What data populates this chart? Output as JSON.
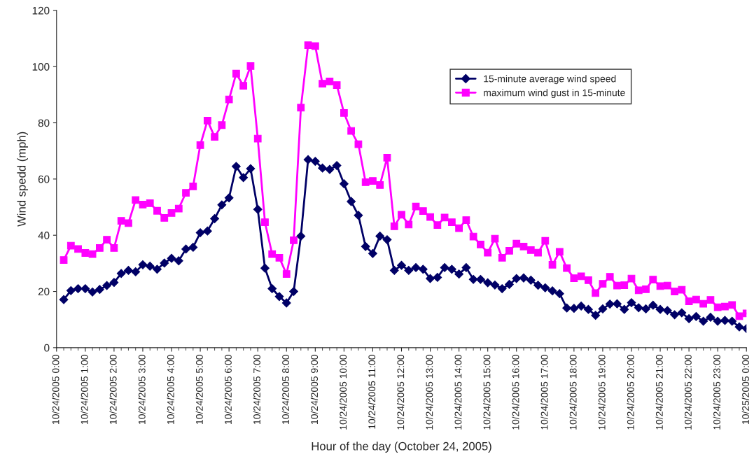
{
  "chart_data": {
    "type": "line",
    "xlabel": "Hour of the day (October 24, 2005)",
    "ylabel": "Wind spedd (mph)",
    "x": [
      "2005-10-24T00:15",
      "2005-10-24T00:30",
      "2005-10-24T00:45",
      "2005-10-24T01:00",
      "2005-10-24T01:15",
      "2005-10-24T01:30",
      "2005-10-24T01:45",
      "2005-10-24T02:00",
      "2005-10-24T02:15",
      "2005-10-24T02:30",
      "2005-10-24T02:45",
      "2005-10-24T03:00",
      "2005-10-24T03:15",
      "2005-10-24T03:30",
      "2005-10-24T03:45",
      "2005-10-24T04:00",
      "2005-10-24T04:15",
      "2005-10-24T04:30",
      "2005-10-24T04:45",
      "2005-10-24T05:00",
      "2005-10-24T05:15",
      "2005-10-24T05:30",
      "2005-10-24T05:45",
      "2005-10-24T06:00",
      "2005-10-24T06:15",
      "2005-10-24T06:30",
      "2005-10-24T06:45",
      "2005-10-24T07:00",
      "2005-10-24T07:15",
      "2005-10-24T07:30",
      "2005-10-24T07:45",
      "2005-10-24T08:00",
      "2005-10-24T08:15",
      "2005-10-24T08:30",
      "2005-10-24T08:45",
      "2005-10-24T09:00",
      "2005-10-24T09:15",
      "2005-10-24T09:30",
      "2005-10-24T09:45",
      "2005-10-24T10:00",
      "2005-10-24T10:15",
      "2005-10-24T10:30",
      "2005-10-24T10:45",
      "2005-10-24T11:00",
      "2005-10-24T11:15",
      "2005-10-24T11:30",
      "2005-10-24T11:45",
      "2005-10-24T12:00",
      "2005-10-24T12:15",
      "2005-10-24T12:30",
      "2005-10-24T12:45",
      "2005-10-24T13:00",
      "2005-10-24T13:15",
      "2005-10-24T13:30",
      "2005-10-24T13:45",
      "2005-10-24T14:00",
      "2005-10-24T14:15",
      "2005-10-24T14:30",
      "2005-10-24T14:45",
      "2005-10-24T15:00",
      "2005-10-24T15:15",
      "2005-10-24T15:30",
      "2005-10-24T15:45",
      "2005-10-24T16:00",
      "2005-10-24T16:15",
      "2005-10-24T16:30",
      "2005-10-24T16:45",
      "2005-10-24T17:00",
      "2005-10-24T17:15",
      "2005-10-24T17:30",
      "2005-10-24T17:45",
      "2005-10-24T18:00",
      "2005-10-24T18:15",
      "2005-10-24T18:30",
      "2005-10-24T18:45",
      "2005-10-24T19:00",
      "2005-10-24T19:15",
      "2005-10-24T19:30",
      "2005-10-24T19:45",
      "2005-10-24T20:00",
      "2005-10-24T20:15",
      "2005-10-24T20:30",
      "2005-10-24T20:45",
      "2005-10-24T21:00",
      "2005-10-24T21:15",
      "2005-10-24T21:30",
      "2005-10-24T21:45",
      "2005-10-24T22:00",
      "2005-10-24T22:15",
      "2005-10-24T22:30",
      "2005-10-24T22:45",
      "2005-10-24T23:00",
      "2005-10-24T23:15",
      "2005-10-24T23:30",
      "2005-10-24T23:45",
      "2005-10-25T00:00"
    ],
    "series": [
      {
        "name": "15-minute average wind speed",
        "color": "#000066",
        "marker": "diamond",
        "values": [
          17.1,
          20.3,
          21.0,
          21.0,
          19.8,
          20.7,
          22.1,
          23.2,
          26.4,
          27.5,
          27.0,
          29.5,
          29.0,
          27.9,
          30.1,
          31.8,
          30.9,
          35.1,
          35.7,
          40.9,
          41.5,
          45.9,
          50.8,
          53.3,
          64.5,
          60.5,
          63.7,
          49.2,
          28.3,
          21.0,
          18.2,
          15.9,
          20.0,
          39.7,
          66.9,
          66.3,
          63.9,
          63.4,
          64.8,
          58.3,
          52.0,
          47.1,
          36.0,
          33.5,
          39.7,
          38.4,
          27.5,
          29.3,
          27.5,
          28.5,
          27.9,
          24.6,
          25.0,
          28.5,
          27.9,
          26.2,
          28.5,
          24.3,
          24.3,
          23.1,
          22.3,
          21.0,
          22.5,
          24.6,
          24.8,
          24.0,
          22.2,
          21.3,
          20.2,
          19.2,
          14.1,
          14.0,
          14.8,
          13.6,
          11.5,
          13.8,
          15.5,
          15.6,
          13.6,
          16.0,
          14.2,
          13.8,
          15.1,
          13.6,
          13.2,
          11.7,
          12.4,
          10.3,
          11.1,
          9.4,
          10.8,
          9.4,
          9.7,
          9.4,
          7.4,
          6.8
        ]
      },
      {
        "name": "maximum wind gust in 15-minute",
        "color": "#ff00ff",
        "marker": "square",
        "values": [
          31.2,
          36.3,
          35.1,
          33.7,
          33.3,
          35.5,
          38.4,
          35.5,
          45.1,
          44.3,
          52.5,
          50.9,
          51.4,
          48.7,
          46.2,
          47.9,
          49.5,
          55.1,
          57.4,
          72.1,
          80.8,
          75.0,
          79.2,
          88.3,
          97.5,
          93.2,
          100.2,
          74.4,
          44.6,
          33.3,
          32.0,
          26.2,
          38.2,
          85.4,
          107.6,
          107.3,
          93.9,
          94.7,
          93.4,
          83.5,
          77.1,
          72.4,
          58.9,
          59.3,
          57.9,
          67.6,
          43.2,
          47.3,
          43.8,
          50.2,
          48.6,
          46.5,
          43.6,
          46.3,
          44.6,
          42.5,
          45.4,
          39.5,
          36.7,
          33.8,
          38.8,
          32.0,
          34.5,
          37.0,
          36.0,
          34.7,
          33.8,
          38.0,
          29.5,
          34.1,
          28.3,
          24.7,
          25.4,
          24.0,
          19.4,
          22.7,
          25.2,
          22.1,
          22.2,
          24.6,
          20.4,
          20.8,
          24.2,
          21.9,
          22.1,
          20.0,
          20.6,
          16.5,
          17.1,
          15.6,
          17.0,
          14.4,
          14.6,
          15.2,
          11.2,
          12.2
        ]
      }
    ],
    "xlim": [
      "2005-10-24T00:00",
      "2005-10-25T00:00"
    ],
    "xticks": [
      {
        "value": "2005-10-24T00:00",
        "label": "10/24/2005 0:00"
      },
      {
        "value": "2005-10-24T01:00",
        "label": "10/24/2005 1:00"
      },
      {
        "value": "2005-10-24T02:00",
        "label": "10/24/2005 2:00"
      },
      {
        "value": "2005-10-24T03:00",
        "label": "10/24/2005 3:00"
      },
      {
        "value": "2005-10-24T04:00",
        "label": "10/24/2005 4:00"
      },
      {
        "value": "2005-10-24T05:00",
        "label": "10/24/2005 5:00"
      },
      {
        "value": "2005-10-24T06:00",
        "label": "10/24/2005 6:00"
      },
      {
        "value": "2005-10-24T07:00",
        "label": "10/24/2005 7:00"
      },
      {
        "value": "2005-10-24T08:00",
        "label": "10/24/2005 8:00"
      },
      {
        "value": "2005-10-24T09:00",
        "label": "10/24/2005 9:00"
      },
      {
        "value": "2005-10-24T10:00",
        "label": "10/24/2005 10:00"
      },
      {
        "value": "2005-10-24T11:00",
        "label": "10/24/2005 11:00"
      },
      {
        "value": "2005-10-24T12:00",
        "label": "10/24/2005 12:00"
      },
      {
        "value": "2005-10-24T13:00",
        "label": "10/24/2005 13:00"
      },
      {
        "value": "2005-10-24T14:00",
        "label": "10/24/2005 14:00"
      },
      {
        "value": "2005-10-24T15:00",
        "label": "10/24/2005 15:00"
      },
      {
        "value": "2005-10-24T16:00",
        "label": "10/24/2005 16:00"
      },
      {
        "value": "2005-10-24T17:00",
        "label": "10/24/2005 17:00"
      },
      {
        "value": "2005-10-24T18:00",
        "label": "10/24/2005 18:00"
      },
      {
        "value": "2005-10-24T19:00",
        "label": "10/24/2005 19:00"
      },
      {
        "value": "2005-10-24T20:00",
        "label": "10/24/2005 20:00"
      },
      {
        "value": "2005-10-24T21:00",
        "label": "10/24/2005 21:00"
      },
      {
        "value": "2005-10-24T22:00",
        "label": "10/24/2005 22:00"
      },
      {
        "value": "2005-10-24T23:00",
        "label": "10/24/2005 23:00"
      },
      {
        "value": "2005-10-25T00:00",
        "label": "10/25/2005 0:00"
      }
    ],
    "ylim": [
      0,
      120
    ],
    "yticks": [
      0,
      20,
      40,
      60,
      80,
      100,
      120
    ],
    "grid": false,
    "legend": "top right",
    "line_style": "solid"
  }
}
